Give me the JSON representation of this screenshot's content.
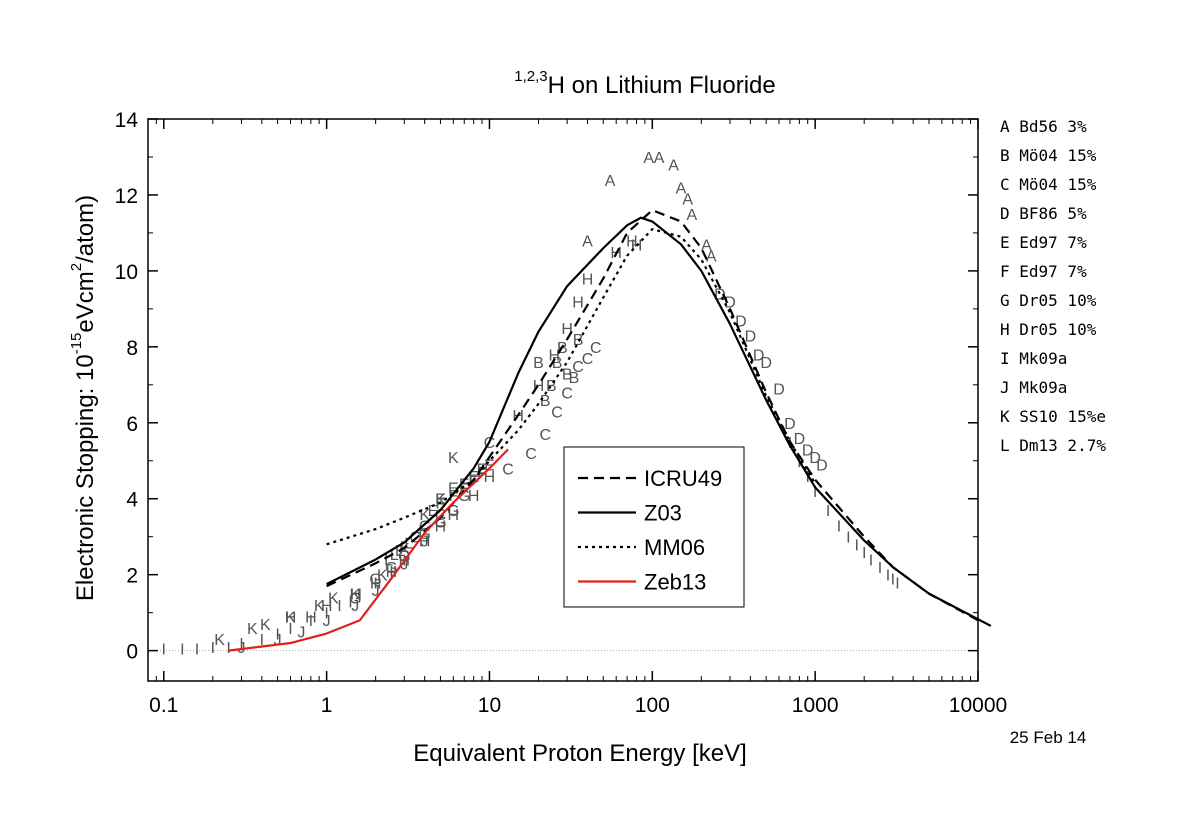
{
  "chart_data": {
    "type": "line",
    "title_sup": "1,2,3",
    "title_main": "H on Lithium Fluoride",
    "xlabel": "Equivalent Proton Energy [keV]",
    "ylabel_pre": "Electronic Stopping: 10",
    "ylabel_sup1": "-15",
    "ylabel_mid": "eVcm",
    "ylabel_sup2": "2",
    "ylabel_post": "/atom)",
    "date": "25 Feb 14",
    "x_scale": "log",
    "xlim": [
      0.08,
      10000
    ],
    "ylim": [
      -0.8,
      14
    ],
    "x_ticks": [
      0.1,
      1,
      10,
      100,
      1000,
      10000
    ],
    "x_tick_labels": [
      "0.1",
      "1",
      "10",
      "100",
      "1000",
      "10000"
    ],
    "y_ticks": [
      0,
      2,
      4,
      6,
      8,
      10,
      12,
      14
    ],
    "y_tick_labels": [
      "0",
      "2",
      "4",
      "6",
      "8",
      "10",
      "12",
      "14"
    ],
    "legend_position": "center",
    "series": [
      {
        "name": "ICRU49",
        "style": "dashed",
        "color": "#000000",
        "x": [
          1,
          2,
          3,
          5,
          8,
          10,
          15,
          20,
          30,
          50,
          70,
          100,
          150,
          200,
          300,
          500,
          700,
          1000,
          2000,
          3000,
          5000,
          10000
        ],
        "y": [
          1.7,
          2.3,
          2.7,
          3.5,
          4.5,
          5.1,
          6.2,
          7.0,
          8.2,
          9.8,
          11.0,
          11.6,
          11.3,
          10.6,
          9.0,
          6.8,
          5.5,
          4.5,
          3.0,
          2.2,
          1.5,
          0.8
        ]
      },
      {
        "name": "Z03",
        "style": "solid",
        "color": "#000000",
        "x": [
          1,
          2,
          3,
          5,
          8,
          10,
          15,
          20,
          30,
          50,
          70,
          85,
          100,
          150,
          200,
          300,
          500,
          700,
          1000,
          2000,
          3000,
          5000,
          12000
        ],
        "y": [
          1.75,
          2.4,
          2.85,
          3.7,
          4.8,
          5.5,
          7.3,
          8.4,
          9.6,
          10.6,
          11.2,
          11.4,
          11.3,
          10.7,
          10.0,
          8.6,
          6.6,
          5.4,
          4.3,
          2.9,
          2.2,
          1.5,
          0.65
        ]
      },
      {
        "name": "MM06",
        "style": "dotted",
        "color": "#000000",
        "x": [
          1,
          2,
          3,
          5,
          8,
          10,
          15,
          20,
          30,
          50,
          70,
          100,
          150,
          200,
          300,
          500,
          700,
          1000
        ],
        "y": [
          2.8,
          3.2,
          3.5,
          3.9,
          4.5,
          5.0,
          5.8,
          6.5,
          7.6,
          9.3,
          10.4,
          11.1,
          10.9,
          10.3,
          8.9,
          6.7,
          5.5,
          4.4
        ]
      },
      {
        "name": "Zeb13",
        "style": "solid",
        "color": "#e0201b",
        "x": [
          0.25,
          0.6,
          1,
          1.6,
          2.5,
          4,
          6,
          10,
          13
        ],
        "y": [
          0.0,
          0.2,
          0.45,
          0.8,
          1.9,
          3.1,
          3.9,
          4.8,
          5.3
        ]
      }
    ],
    "points": [
      {
        "label": "A",
        "x": [
          40,
          55,
          95,
          110,
          135,
          150,
          165,
          175,
          215,
          230
        ],
        "y": [
          10.8,
          12.4,
          13.0,
          13.0,
          12.8,
          12.2,
          11.9,
          11.5,
          10.7,
          10.4
        ]
      },
      {
        "label": "B",
        "x": [
          20,
          22,
          24,
          26,
          28,
          30,
          33,
          35
        ],
        "y": [
          7.6,
          6.6,
          7.0,
          7.6,
          8.0,
          7.3,
          7.2,
          8.2
        ]
      },
      {
        "label": "C",
        "x": [
          3.5,
          4,
          5,
          10,
          13,
          18,
          22,
          26,
          30,
          35,
          40,
          45
        ],
        "y": [
          3.0,
          3.3,
          3.6,
          5.5,
          4.8,
          5.2,
          5.7,
          6.3,
          6.8,
          7.5,
          7.7,
          8.0
        ]
      },
      {
        "label": "D",
        "x": [
          260,
          300,
          350,
          400,
          450,
          500,
          600,
          700,
          800,
          900,
          1000,
          1100
        ],
        "y": [
          9.4,
          9.2,
          8.7,
          8.3,
          7.8,
          7.6,
          6.9,
          6.0,
          5.6,
          5.3,
          5.1,
          4.9
        ]
      },
      {
        "label": "E",
        "x": [
          4.5,
          5,
          6,
          7,
          8,
          9,
          10
        ],
        "y": [
          3.7,
          4.0,
          4.3,
          4.4,
          4.6,
          4.8,
          4.9
        ]
      },
      {
        "label": "F",
        "x": [
          5,
          6,
          7,
          8,
          9
        ],
        "y": [
          3.9,
          4.1,
          4.3,
          4.5,
          4.7
        ]
      },
      {
        "label": "G",
        "x": [
          1.5,
          2,
          2.5,
          3,
          4,
          5,
          6,
          7
        ],
        "y": [
          1.4,
          1.9,
          2.2,
          2.5,
          3.1,
          3.4,
          3.7,
          4.1
        ]
      },
      {
        "label": "H",
        "x": [
          0.6,
          0.8,
          1,
          1.5,
          2,
          2.5,
          3,
          4,
          5,
          6,
          8,
          10,
          15,
          20,
          25,
          30,
          35,
          40,
          60,
          75,
          80
        ],
        "y": [
          0.9,
          0.9,
          1.2,
          1.5,
          1.8,
          2.1,
          2.4,
          2.9,
          3.3,
          3.6,
          4.1,
          4.6,
          6.2,
          7.0,
          7.8,
          8.5,
          9.2,
          9.8,
          10.5,
          10.8,
          10.7
        ]
      },
      {
        "label": "I",
        "x": [
          0.1,
          0.13,
          0.16,
          0.2,
          0.25,
          0.3,
          0.4,
          0.5,
          0.6,
          0.8,
          1.0,
          1.2,
          1.4,
          1.6,
          2,
          2.5,
          3,
          700,
          800,
          900,
          1000,
          1200,
          1400,
          1600,
          1800,
          2000,
          2200,
          2500,
          2800,
          3000,
          3200
        ],
        "y": [
          0.05,
          0.05,
          0.05,
          0.1,
          0.1,
          0.2,
          0.3,
          0.45,
          0.6,
          0.8,
          1.0,
          1.2,
          1.3,
          1.5,
          1.8,
          2.1,
          2.4,
          5.5,
          5.0,
          4.6,
          4.2,
          3.7,
          3.3,
          3.0,
          2.8,
          2.6,
          2.4,
          2.2,
          2.0,
          1.9,
          1.8
        ]
      },
      {
        "label": "J",
        "x": [
          0.3,
          0.5,
          0.7,
          1,
          1.5,
          2,
          3,
          4
        ],
        "y": [
          0.1,
          0.3,
          0.5,
          0.8,
          1.2,
          1.6,
          2.3,
          2.9
        ]
      },
      {
        "label": "K",
        "x": [
          0.22,
          0.35,
          0.42,
          0.6,
          0.9,
          1.1,
          1.5,
          2.2,
          3,
          4,
          5,
          6
        ],
        "y": [
          0.3,
          0.6,
          0.7,
          0.9,
          1.2,
          1.4,
          1.5,
          2.0,
          2.7,
          3.6,
          4.0,
          5.1
        ]
      },
      {
        "label": "L",
        "x": [
          2.4,
          2.6,
          2.8,
          3.0,
          3.2
        ],
        "y": [
          2.4,
          2.55,
          2.65,
          2.75,
          2.85
        ]
      }
    ],
    "data_legend": [
      {
        "key": "A",
        "text": "Bd56 3%"
      },
      {
        "key": "B",
        "text": "Mö04 15%"
      },
      {
        "key": "C",
        "text": "Mö04 15%"
      },
      {
        "key": "D",
        "text": "BF86 5%"
      },
      {
        "key": "E",
        "text": "Ed97 7%"
      },
      {
        "key": "F",
        "text": "Ed97 7%"
      },
      {
        "key": "G",
        "text": "Dr05 10%"
      },
      {
        "key": "H",
        "text": "Dr05 10%"
      },
      {
        "key": "I",
        "text": "Mk09a"
      },
      {
        "key": "J",
        "text": "Mk09a"
      },
      {
        "key": "K",
        "text": "SS10 15%e"
      },
      {
        "key": "L",
        "text": "Dm13 2.7%"
      }
    ],
    "colors": {
      "axis": "#000000",
      "points": "#555555",
      "zeb13": "#e0201b",
      "zero_line": "#aaaaaa"
    }
  }
}
